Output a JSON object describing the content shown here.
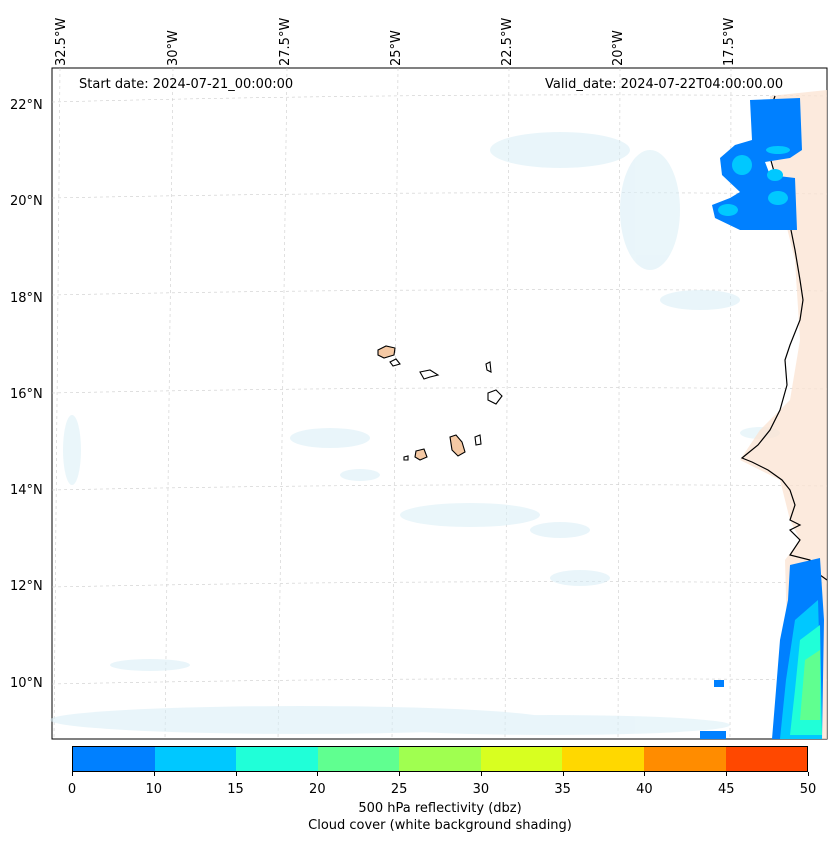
{
  "map": {
    "lon_labels": [
      "32.5°W",
      "30°W",
      "27.5°W",
      "25°W",
      "22.5°W",
      "20°W",
      "17.5°W"
    ],
    "lat_labels": [
      "22°N",
      "20°N",
      "18°N",
      "16°N",
      "14°N",
      "12°N",
      "10°N"
    ],
    "start_date": "Start date: 2024-07-21_00:00:00",
    "valid_date": "Valid_date: 2024-07-22T04:00:00.00"
  },
  "colorbar": {
    "ticks": [
      "0",
      "10",
      "15",
      "20",
      "25",
      "30",
      "35",
      "40",
      "45",
      "50"
    ],
    "colors": [
      "#0080ff",
      "#00c8ff",
      "#20ffd8",
      "#60ff90",
      "#a0ff50",
      "#d8ff20",
      "#ffd800",
      "#ff8c00",
      "#ff4800"
    ],
    "label_line1": "500 hPa reflectivity (dbz)",
    "label_line2": "Cloud cover (white background shading)"
  }
}
